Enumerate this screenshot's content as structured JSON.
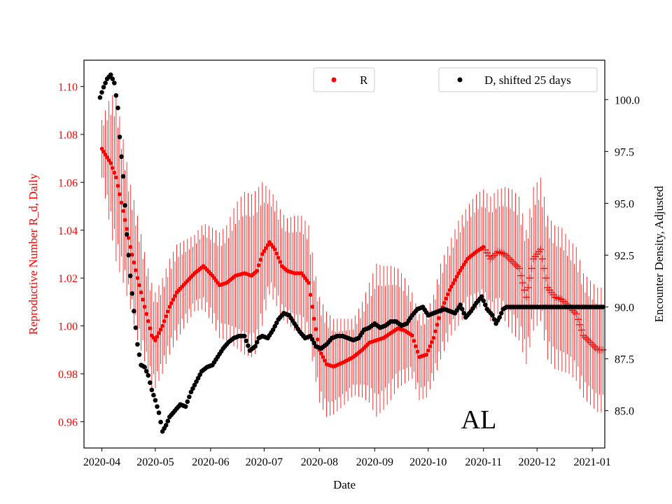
{
  "chart_data": {
    "type": "scatter",
    "state_label": "AL",
    "xlabel": "Date",
    "ylabel_left": "Reproductive Number R_d, Daily",
    "ylabel_right": "Encounter Density, Adjusted",
    "x_range_days": [
      -10,
      282
    ],
    "ylim_left": [
      0.949,
      1.111
    ],
    "ylim_right": [
      83.2,
      101.9
    ],
    "x_ticks": [
      {
        "day": 0,
        "label": "2020-04"
      },
      {
        "day": 30,
        "label": "2020-05"
      },
      {
        "day": 61,
        "label": "2020-06"
      },
      {
        "day": 91,
        "label": "2020-07"
      },
      {
        "day": 122,
        "label": "2020-08"
      },
      {
        "day": 153,
        "label": "2020-09"
      },
      {
        "day": 183,
        "label": "2020-10"
      },
      {
        "day": 214,
        "label": "2020-11"
      },
      {
        "day": 244,
        "label": "2020-12"
      },
      {
        "day": 275,
        "label": "2021-01"
      }
    ],
    "y_ticks_left": [
      {
        "value": 0.96,
        "label": "0.96"
      },
      {
        "value": 0.98,
        "label": "0.98"
      },
      {
        "value": 1.0,
        "label": "1.00"
      },
      {
        "value": 1.02,
        "label": "1.02"
      },
      {
        "value": 1.04,
        "label": "1.04"
      },
      {
        "value": 1.06,
        "label": "1.06"
      },
      {
        "value": 1.08,
        "label": "1.08"
      },
      {
        "value": 1.1,
        "label": "1.10"
      }
    ],
    "y_ticks_right": [
      {
        "value": 85.0,
        "label": "85.0"
      },
      {
        "value": 87.5,
        "label": "87.5"
      },
      {
        "value": 90.0,
        "label": "90.0"
      },
      {
        "value": 92.5,
        "label": "92.5"
      },
      {
        "value": 95.0,
        "label": "95.0"
      },
      {
        "value": 97.5,
        "label": "97.5"
      },
      {
        "value": 100.0,
        "label": "100.0"
      }
    ],
    "legend": [
      {
        "label": "R",
        "color": "#ff0000",
        "placement": "upper-center"
      },
      {
        "label": "D, shifted 25 days",
        "color": "#000000",
        "placement": "upper-right"
      }
    ],
    "series": [
      {
        "name": "R",
        "axis": "left",
        "color": "#ff0000",
        "observed_until_day": 214,
        "points_day_value_err": [
          [
            0,
            1.074,
            0.012
          ],
          [
            5,
            1.068,
            0.028
          ],
          [
            8,
            1.062,
            0.035
          ],
          [
            12,
            1.048,
            0.03
          ],
          [
            16,
            1.033,
            0.026
          ],
          [
            20,
            1.02,
            0.026
          ],
          [
            25,
            1.005,
            0.022
          ],
          [
            28,
            0.996,
            0.022
          ],
          [
            30,
            0.994,
            0.02
          ],
          [
            34,
            1.0,
            0.02
          ],
          [
            38,
            1.008,
            0.02
          ],
          [
            42,
            1.014,
            0.02
          ],
          [
            47,
            1.018,
            0.018
          ],
          [
            52,
            1.022,
            0.016
          ],
          [
            57,
            1.025,
            0.018
          ],
          [
            62,
            1.021,
            0.02
          ],
          [
            66,
            1.017,
            0.022
          ],
          [
            70,
            1.018,
            0.024
          ],
          [
            75,
            1.021,
            0.03
          ],
          [
            80,
            1.022,
            0.034
          ],
          [
            84,
            1.021,
            0.034
          ],
          [
            87,
            1.023,
            0.034
          ],
          [
            90,
            1.03,
            0.03
          ],
          [
            94,
            1.035,
            0.022
          ],
          [
            97,
            1.032,
            0.022
          ],
          [
            101,
            1.025,
            0.022
          ],
          [
            104,
            1.023,
            0.022
          ],
          [
            108,
            1.022,
            0.024
          ],
          [
            112,
            1.022,
            0.024
          ],
          [
            116,
            1.018,
            0.024
          ],
          [
            119,
            1.003,
            0.022
          ],
          [
            122,
            0.99,
            0.022
          ],
          [
            126,
            0.984,
            0.022
          ],
          [
            130,
            0.983,
            0.02
          ],
          [
            136,
            0.985,
            0.018
          ],
          [
            141,
            0.987,
            0.016
          ],
          [
            146,
            0.99,
            0.02
          ],
          [
            150,
            0.993,
            0.025
          ],
          [
            154,
            0.994,
            0.032
          ],
          [
            158,
            0.995,
            0.03
          ],
          [
            162,
            0.997,
            0.028
          ],
          [
            166,
            0.999,
            0.025
          ],
          [
            170,
            0.998,
            0.022
          ],
          [
            174,
            0.996,
            0.018
          ],
          [
            178,
            0.987,
            0.018
          ],
          [
            182,
            0.988,
            0.018
          ],
          [
            186,
            0.995,
            0.018
          ],
          [
            190,
            1.006,
            0.02
          ],
          [
            195,
            1.015,
            0.02
          ],
          [
            200,
            1.022,
            0.022
          ],
          [
            205,
            1.028,
            0.022
          ],
          [
            210,
            1.031,
            0.024
          ],
          [
            214,
            1.033,
            0.024
          ],
          [
            218,
            1.028,
            0.026
          ],
          [
            222,
            1.031,
            0.026
          ],
          [
            226,
            1.03,
            0.028
          ],
          [
            230,
            1.027,
            0.03
          ],
          [
            234,
            1.024,
            0.03
          ],
          [
            238,
            1.012,
            0.028
          ],
          [
            242,
            1.028,
            0.03
          ],
          [
            246,
            1.032,
            0.03
          ],
          [
            250,
            1.016,
            0.03
          ],
          [
            254,
            1.012,
            0.03
          ],
          [
            258,
            1.011,
            0.03
          ],
          [
            262,
            1.008,
            0.028
          ],
          [
            266,
            1.005,
            0.028
          ],
          [
            270,
            0.996,
            0.026
          ],
          [
            274,
            0.993,
            0.026
          ],
          [
            278,
            0.99,
            0.026
          ],
          [
            281,
            0.99,
            0.026
          ]
        ]
      },
      {
        "name": "D, shifted 25 days",
        "axis": "right",
        "color": "#000000",
        "points_day_value": [
          [
            -1,
            100.1
          ],
          [
            1,
            100.6
          ],
          [
            3,
            101.0
          ],
          [
            5,
            101.2
          ],
          [
            7,
            100.8
          ],
          [
            9,
            99.6
          ],
          [
            10,
            98.2
          ],
          [
            12,
            96.3
          ],
          [
            14,
            93.5
          ],
          [
            16,
            91.5
          ],
          [
            18,
            89.8
          ],
          [
            20,
            88.2
          ],
          [
            22,
            87.2
          ],
          [
            24,
            87.1
          ],
          [
            26,
            86.7
          ],
          [
            28,
            86.0
          ],
          [
            30,
            85.5
          ],
          [
            32,
            84.9
          ],
          [
            34,
            84.0
          ],
          [
            36,
            84.3
          ],
          [
            38,
            84.7
          ],
          [
            41,
            85.0
          ],
          [
            44,
            85.3
          ],
          [
            47,
            85.2
          ],
          [
            50,
            85.9
          ],
          [
            53,
            86.4
          ],
          [
            56,
            86.9
          ],
          [
            59,
            87.1
          ],
          [
            62,
            87.2
          ],
          [
            65,
            87.6
          ],
          [
            68,
            88.0
          ],
          [
            71,
            88.3
          ],
          [
            74,
            88.5
          ],
          [
            77,
            88.6
          ],
          [
            80,
            88.6
          ],
          [
            83,
            87.9
          ],
          [
            86,
            88.1
          ],
          [
            88,
            88.5
          ],
          [
            90,
            88.6
          ],
          [
            93,
            88.5
          ],
          [
            96,
            88.9
          ],
          [
            99,
            89.4
          ],
          [
            102,
            89.7
          ],
          [
            105,
            89.6
          ],
          [
            108,
            89.2
          ],
          [
            111,
            88.8
          ],
          [
            114,
            88.5
          ],
          [
            117,
            88.6
          ],
          [
            120,
            88.1
          ],
          [
            123,
            88.0
          ],
          [
            126,
            88.2
          ],
          [
            129,
            88.5
          ],
          [
            132,
            88.6
          ],
          [
            135,
            88.6
          ],
          [
            138,
            88.5
          ],
          [
            141,
            88.4
          ],
          [
            144,
            88.5
          ],
          [
            147,
            88.9
          ],
          [
            150,
            89.0
          ],
          [
            153,
            89.2
          ],
          [
            156,
            89.0
          ],
          [
            159,
            89.1
          ],
          [
            162,
            89.3
          ],
          [
            165,
            89.3
          ],
          [
            168,
            89.1
          ],
          [
            171,
            89.2
          ],
          [
            174,
            89.6
          ],
          [
            177,
            89.9
          ],
          [
            180,
            90.0
          ],
          [
            183,
            89.6
          ],
          [
            186,
            89.7
          ],
          [
            189,
            89.8
          ],
          [
            192,
            89.9
          ],
          [
            195,
            89.8
          ],
          [
            198,
            89.7
          ],
          [
            201,
            90.1
          ],
          [
            204,
            89.5
          ],
          [
            207,
            89.8
          ],
          [
            210,
            90.2
          ],
          [
            213,
            90.5
          ],
          [
            216,
            89.9
          ],
          [
            219,
            89.6
          ],
          [
            221,
            89.2
          ],
          [
            223,
            89.5
          ],
          [
            225,
            89.9
          ],
          [
            227,
            90.0
          ],
          [
            231,
            90.0
          ],
          [
            236,
            90.0
          ],
          [
            241,
            90.0
          ],
          [
            246,
            90.0
          ],
          [
            251,
            90.0
          ],
          [
            256,
            90.0
          ],
          [
            261,
            90.0
          ],
          [
            266,
            90.0
          ],
          [
            271,
            90.0
          ],
          [
            276,
            90.0
          ],
          [
            281,
            90.0
          ]
        ]
      }
    ]
  }
}
